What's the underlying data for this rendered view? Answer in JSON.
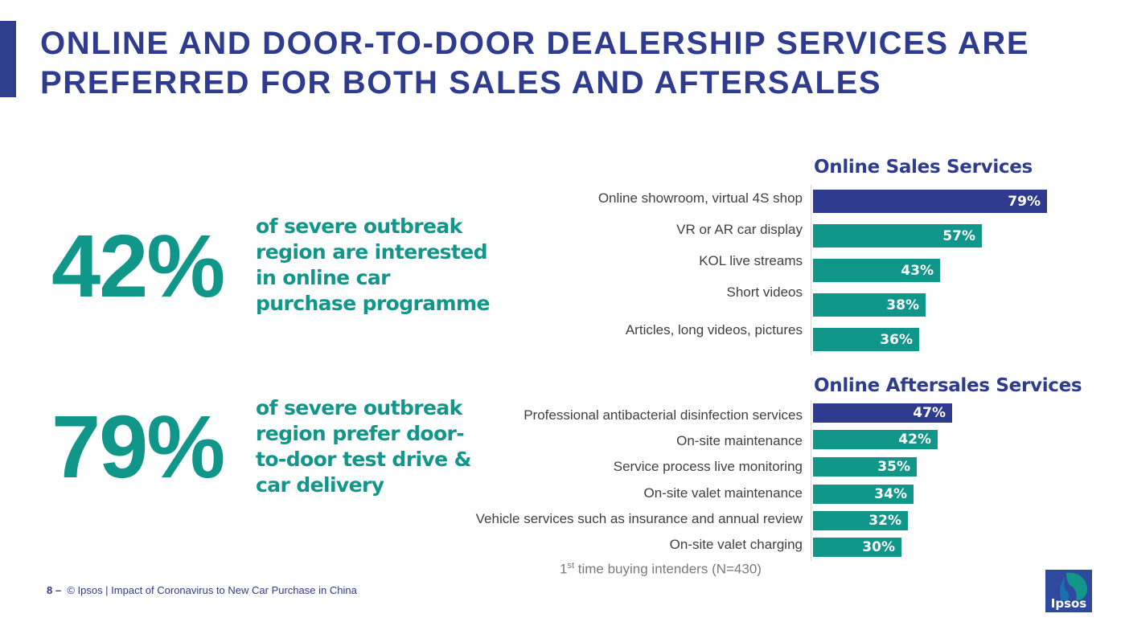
{
  "title": {
    "line1": "ONLINE AND DOOR-TO-DOOR DEALERSHIP SERVICES ARE",
    "line2": "PREFERRED FOR BOTH SALES AND AFTERSALES"
  },
  "stats": [
    {
      "value": "42%",
      "lines": [
        "of severe outbreak",
        "region are interested",
        "in online car",
        "purchase programme"
      ]
    },
    {
      "value": "79%",
      "lines": [
        "of severe outbreak",
        "region prefer door-",
        "to-door  test drive &",
        "car delivery"
      ]
    }
  ],
  "chart_data": [
    {
      "type": "bar",
      "orientation": "horizontal",
      "title": "Online Sales Services",
      "categories": [
        "Online showroom, virtual 4S shop",
        "VR or AR car display",
        "KOL live streams",
        "Short videos",
        "Articles, long videos, pictures"
      ],
      "values": [
        79,
        57,
        43,
        38,
        36
      ],
      "value_labels": [
        "79%",
        "57%",
        "43%",
        "38%",
        "36%"
      ],
      "colors": [
        "#2e3b8f",
        "#11968a",
        "#11968a",
        "#11968a",
        "#11968a"
      ],
      "xlim": [
        0,
        100
      ]
    },
    {
      "type": "bar",
      "orientation": "horizontal",
      "title": "Online Aftersales Services",
      "categories": [
        "Professional antibacterial disinfection services",
        "On-site maintenance",
        "Service process live monitoring",
        "On-site valet maintenance",
        "Vehicle services such as insurance and annual review",
        "On-site valet charging"
      ],
      "values": [
        47,
        42,
        35,
        34,
        32,
        30
      ],
      "value_labels": [
        "47%",
        "42%",
        "35%",
        "34%",
        "32%",
        "30%"
      ],
      "colors": [
        "#2e3b8f",
        "#11968a",
        "#11968a",
        "#11968a",
        "#11968a",
        "#11968a"
      ],
      "xlim": [
        0,
        100
      ]
    }
  ],
  "base_note": {
    "ordinal": "1",
    "suffix": "st",
    "rest": " time buying intenders (N=430)"
  },
  "footer": {
    "page": "8 –",
    "text": "© Ipsos | Impact of Coronavirus to New Car Purchase in China"
  },
  "logo": {
    "text": "Ipsos",
    "icon": "ipsos-head-logo",
    "color": "#2e4a9e",
    "accent": "#11968a"
  }
}
